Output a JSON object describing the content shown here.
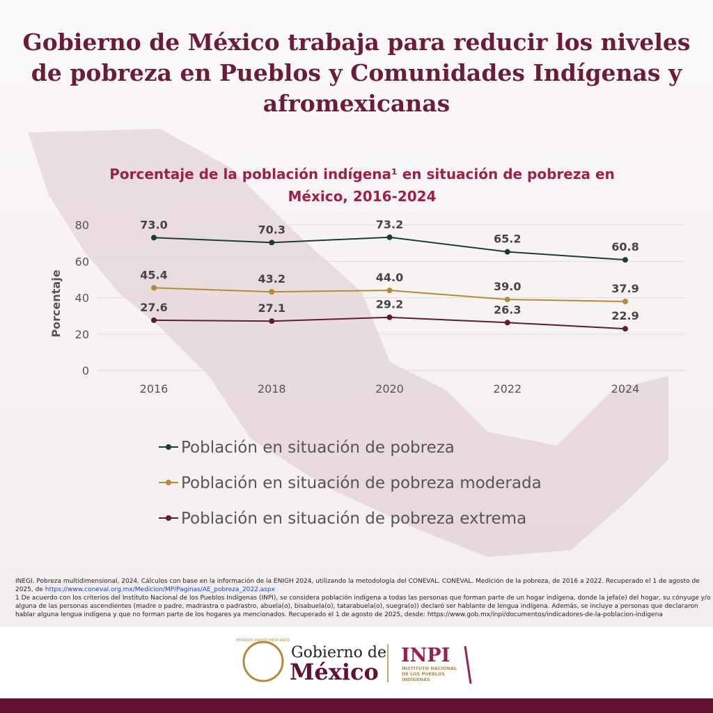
{
  "header": {
    "title_lines": [
      "Gobierno de México trabaja para reducir los niveles",
      "de pobreza en Pueblos y Comunidades Indígenas y",
      "afromexicanas"
    ]
  },
  "chart_data": {
    "type": "line",
    "title_lines": [
      "Porcentaje de la población indígena¹ en situación de pobreza en",
      "México, 2016-2024"
    ],
    "y_label": "Porcentaje",
    "categories": [
      "2016",
      "2018",
      "2020",
      "2022",
      "2024"
    ],
    "ylim": [
      0,
      80
    ],
    "yticks": [
      0,
      20,
      40,
      60,
      80
    ],
    "grid": true,
    "series": [
      {
        "name": "Población en situación de pobreza",
        "color": "#1b3d31",
        "values": [
          73,
          70.3,
          73.2,
          65.2,
          60.8
        ],
        "value_labels": [
          "73.0",
          "70.3",
          "73.2",
          "65.2",
          "60.8"
        ]
      },
      {
        "name": "Población en situación de pobreza moderada",
        "color": "#b38a3c",
        "values": [
          45.4,
          43.2,
          44,
          39,
          37.9
        ],
        "value_labels": [
          "45.4",
          "43.2",
          "44.0",
          "39.0",
          "37.9"
        ]
      },
      {
        "name": "Población en situación de pobreza extrema",
        "color": "#5d1b35",
        "values": [
          27.6,
          27.1,
          29.2,
          26.3,
          22.9
        ],
        "value_labels": [
          "27.6",
          "27.1",
          "29.2",
          "26.3",
          "22.9"
        ]
      }
    ]
  },
  "footnotes": {
    "line0": "INEGI. Pobreza multidimensional, 2024. Cálculos con base en la información de la ENIGH 2024, utilizando la metodología del CONEVAL. CONEVAL. Medición de la pobreza, de 2016 a 2022. Recuperado el 1 de agosto de",
    "line1": "2025, de ",
    "link": "https://www.coneval.org.mx/Medicion/MP/Paginas/AE_pobreza_2022.aspx",
    "line2": "1 De acuerdo con los criterios del Instituto Nacional de los Pueblos Indígenas (INPI), se considera población indígena a todas las personas que forman parte de un hogar indígena, donde la jefa(e) del hogar, su cónyuge y/o",
    "line3": "alguna de las personas ascendientes (madre o padre, madrastra o padrastro, abuela(o), bisabuela(o), tatarabuela(o), suegra(o)) declaró ser hablante de lengua indígena. Además, se incluye a personas que declararon",
    "line4": "hablar alguna lengua indígena y que no forman parte de los hogares ya mencionados. Recuperado el 1 de agosto de 2025, desde: https://www.gob.mx/inpi/documentos/indicadores-de-la-poblacion-indigena"
  },
  "footer": {
    "emblem": "ESTADOS UNIDOS MEXICANOS",
    "gob_line1": "Gobierno de",
    "gob_line2": "México",
    "inpi": "INPI",
    "inpi_name_lines": [
      "INSTITUTO NACIONAL",
      "DE LOS PUEBLOS",
      "INDÍGENAS"
    ]
  }
}
